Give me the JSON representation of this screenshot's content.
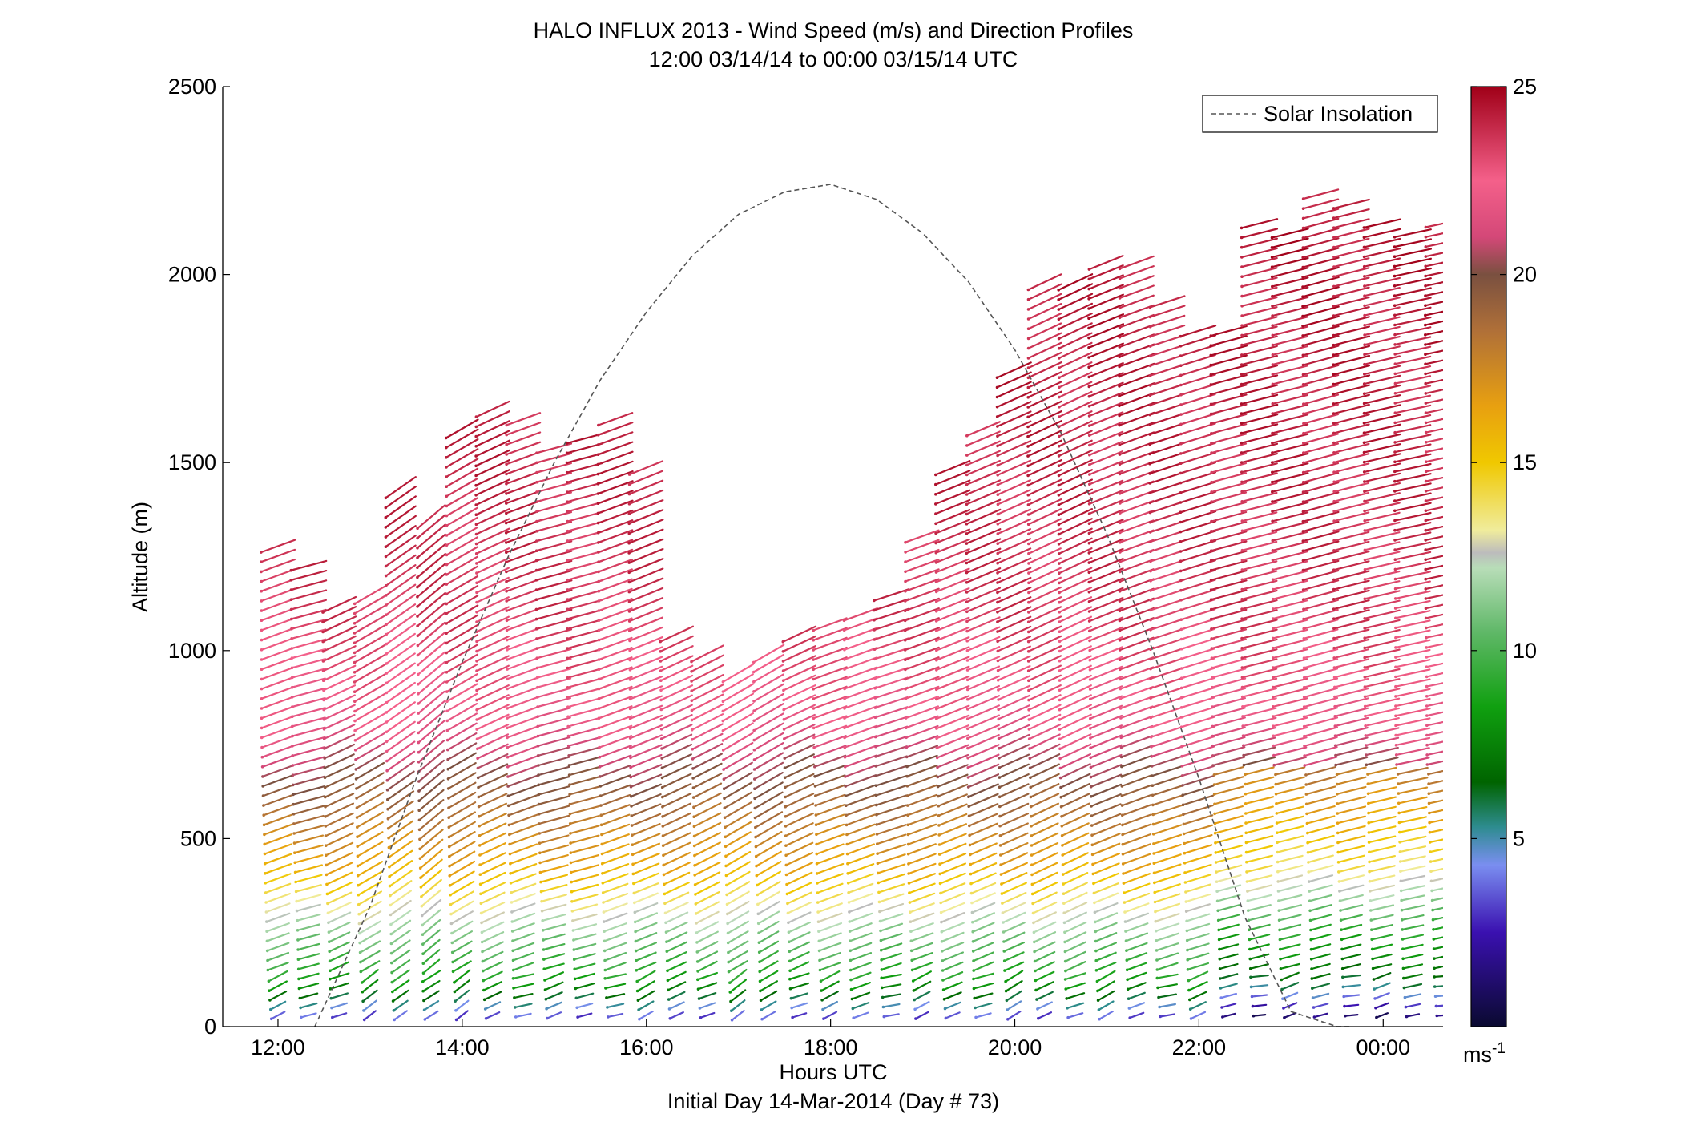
{
  "figure": {
    "title": "HALO INFLUX 2013 - Wind Speed (m/s) and Direction Profiles",
    "subtitle": "12:00 03/14/14 to 00:00 03/15/14  UTC",
    "xlabel": "Hours UTC",
    "xlabel2": "Initial Day 14-Mar-2014 (Day # 73)",
    "ylabel": "Altitude (m)",
    "colorbar_unit_base": "ms",
    "colorbar_unit_exp": "-1"
  },
  "chart_data": {
    "type": "scatter",
    "description_kind": "wind barb / arrow profile plot colored by wind speed",
    "x_unit": "hours UTC",
    "xlim": [
      11.4,
      24.65
    ],
    "x_ticks": [
      12,
      14,
      16,
      18,
      20,
      22,
      24
    ],
    "x_tick_labels": [
      "12:00",
      "14:00",
      "16:00",
      "18:00",
      "20:00",
      "22:00",
      "00:00"
    ],
    "ylim": [
      0,
      2500
    ],
    "y_ticks": [
      0,
      500,
      1000,
      1500,
      2000,
      2500
    ],
    "y_tick_labels": [
      "0",
      "500",
      "1000",
      "1500",
      "2000",
      "2500"
    ],
    "grid": false,
    "legend": {
      "position": "top-right",
      "entries": [
        {
          "name": "Solar Insolation",
          "style": "dashed",
          "color": "#555555"
        }
      ]
    },
    "colorbar": {
      "min": 0,
      "max": 25,
      "ticks": [
        5,
        10,
        15,
        20,
        25
      ],
      "stops": [
        {
          "v": 0,
          "c": "#0a0a30"
        },
        {
          "v": 2.5,
          "c": "#3a10b0"
        },
        {
          "v": 4.3,
          "c": "#7a8ef0"
        },
        {
          "v": 5.3,
          "c": "#2e8c90"
        },
        {
          "v": 6.5,
          "c": "#006400"
        },
        {
          "v": 8.5,
          "c": "#10a010"
        },
        {
          "v": 10.5,
          "c": "#60b868"
        },
        {
          "v": 12.2,
          "c": "#b8ddb8"
        },
        {
          "v": 12.6,
          "c": "#bcbcbc"
        },
        {
          "v": 13.2,
          "c": "#f0ec9c"
        },
        {
          "v": 15,
          "c": "#f0c800"
        },
        {
          "v": 16.5,
          "c": "#e8a010"
        },
        {
          "v": 18.5,
          "c": "#b07038"
        },
        {
          "v": 20,
          "c": "#7a5040"
        },
        {
          "v": 21,
          "c": "#d44878"
        },
        {
          "v": 22.5,
          "c": "#f4608a"
        },
        {
          "v": 25,
          "c": "#a00018"
        }
      ]
    },
    "solar_insolation": {
      "x": [
        12.4,
        13.0,
        13.5,
        14.0,
        14.5,
        15.0,
        15.5,
        16.0,
        16.5,
        17.0,
        17.5,
        18.0,
        18.5,
        19.0,
        19.5,
        20.0,
        20.5,
        21.0,
        21.5,
        22.0,
        22.5,
        23.0,
        23.5,
        23.65
      ],
      "y": [
        0,
        320,
        660,
        970,
        1250,
        1500,
        1720,
        1900,
        2050,
        2160,
        2220,
        2240,
        2200,
        2110,
        1980,
        1800,
        1580,
        1310,
        1000,
        660,
        290,
        40,
        0,
        0
      ]
    },
    "profiles": {
      "time_start": 12.0,
      "time_end": 23.9,
      "time_step": 0.333,
      "range_gate_m": 26,
      "min_altitude_m": 30,
      "top_altitude_m": [
        1290,
        1250,
        1130,
        1160,
        1450,
        1370,
        1600,
        1650,
        1640,
        1540,
        1570,
        1620,
        1500,
        1050,
        1000,
        950,
        1000,
        1060,
        1090,
        1100,
        1160,
        1310,
        1500,
        1600,
        1750,
        2000,
        2000,
        2050,
        2050,
        1950,
        1860,
        1860,
        2140,
        2120,
        2230,
        2190,
        2160,
        2130,
        2140,
        2230,
        2220
      ],
      "speed_by_altitude": [
        {
          "z": 30,
          "v": 3.5
        },
        {
          "z": 120,
          "v": 8.5
        },
        {
          "z": 260,
          "v": 11.5
        },
        {
          "z": 420,
          "v": 16.0
        },
        {
          "z": 600,
          "v": 19.0
        },
        {
          "z": 800,
          "v": 22.0
        },
        {
          "z": 1100,
          "v": 23.5
        },
        {
          "z": 1500,
          "v": 24.0
        },
        {
          "z": 2300,
          "v": 24.5
        }
      ],
      "direction_deg_from": [
        250,
        255,
        245,
        240,
        235,
        230,
        240,
        245,
        250,
        255,
        255,
        250,
        248,
        245,
        243,
        240,
        240,
        245,
        250,
        250,
        252,
        250,
        248,
        247,
        246,
        245,
        245,
        248,
        250,
        252,
        253,
        255,
        256,
        256,
        255,
        256,
        257,
        258,
        258,
        258,
        258
      ]
    }
  }
}
